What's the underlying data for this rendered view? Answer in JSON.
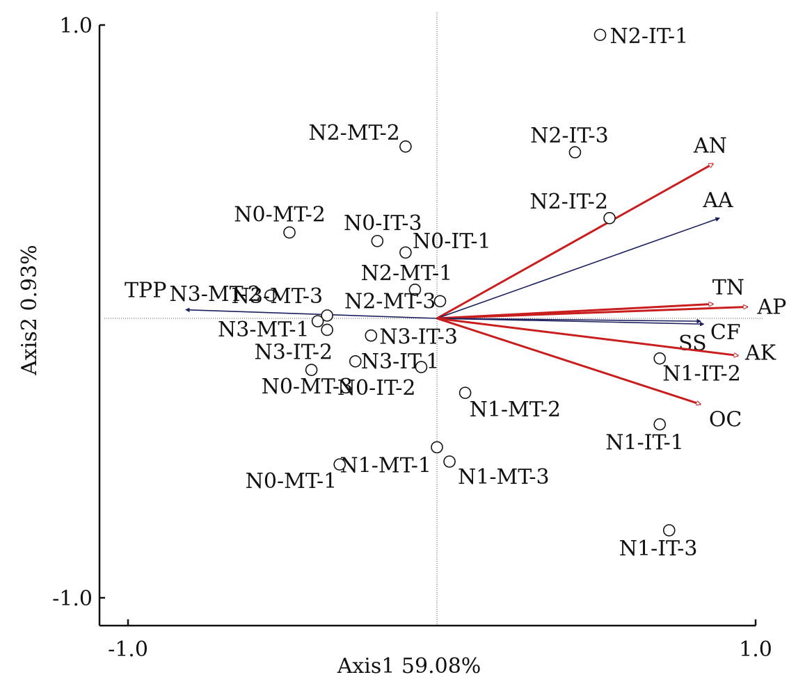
{
  "chart_data": {
    "type": "scatter",
    "xlabel": "Axis1 59.08%",
    "ylabel": "Axis2 0.93%",
    "xlim": [
      -1.0,
      1.0
    ],
    "ylim": [
      -1.0,
      1.0
    ],
    "xticks": [
      "-1.0",
      "1.0"
    ],
    "yticks": [
      "1.0",
      "-1.0"
    ],
    "grid": false,
    "samples": [
      {
        "label": "N2-IT-1",
        "x": 0.52,
        "y": 0.99
      },
      {
        "label": "N2-MT-2",
        "x": -0.1,
        "y": 0.6
      },
      {
        "label": "N2-IT-3",
        "x": 0.44,
        "y": 0.58
      },
      {
        "label": "N2-IT-2",
        "x": 0.55,
        "y": 0.35
      },
      {
        "label": "N0-MT-2",
        "x": -0.47,
        "y": 0.3
      },
      {
        "label": "N0-IT-3",
        "x": -0.19,
        "y": 0.27
      },
      {
        "label": "N0-IT-1",
        "x": -0.1,
        "y": 0.23
      },
      {
        "label": "N2-MT-1",
        "x": -0.07,
        "y": 0.1
      },
      {
        "label": "N2-MT-3",
        "x": 0.01,
        "y": 0.06
      },
      {
        "label": "N3-MT-2",
        "x": -0.53,
        "y": 0.08
      },
      {
        "label": "N3-MT-3",
        "x": -0.35,
        "y": 0.01
      },
      {
        "label": "N3-MT-1",
        "x": -0.38,
        "y": -0.01
      },
      {
        "label": "N3-IT-2",
        "x": -0.35,
        "y": -0.04
      },
      {
        "label": "N3-IT-3",
        "x": -0.21,
        "y": -0.06
      },
      {
        "label": "N3-IT-1",
        "x": -0.26,
        "y": -0.15
      },
      {
        "label": "N0-IT-2",
        "x": -0.05,
        "y": -0.17
      },
      {
        "label": "N0-MT-3",
        "x": -0.4,
        "y": -0.18
      },
      {
        "label": "N1-IT-2",
        "x": 0.71,
        "y": -0.14
      },
      {
        "label": "N1-MT-2",
        "x": 0.09,
        "y": -0.26
      },
      {
        "label": "N1-IT-1",
        "x": 0.71,
        "y": -0.37
      },
      {
        "label": "N1-MT-1",
        "x": 0.0,
        "y": -0.45
      },
      {
        "label": "N1-MT-3",
        "x": 0.04,
        "y": -0.5
      },
      {
        "label": "N0-MT-1",
        "x": -0.31,
        "y": -0.51
      },
      {
        "label": "N1-IT-3",
        "x": 0.74,
        "y": -0.74
      }
    ],
    "vectors": [
      {
        "label": "AN",
        "x": 0.88,
        "y": 0.54,
        "color": "#c81e1e"
      },
      {
        "label": "AA",
        "x": 0.9,
        "y": 0.35,
        "color": "#1a1f5e"
      },
      {
        "label": "TN",
        "x": 0.88,
        "y": 0.05,
        "color": "#c81e1e"
      },
      {
        "label": "AP",
        "x": 0.99,
        "y": 0.04,
        "color": "#c81e1e"
      },
      {
        "label": "CF",
        "x": 0.84,
        "y": -0.01,
        "color": "#1a1f5e"
      },
      {
        "label": "SS",
        "x": 0.85,
        "y": -0.02,
        "color": "#1a1f5e"
      },
      {
        "label": "AK",
        "x": 0.96,
        "y": -0.13,
        "color": "#c81e1e"
      },
      {
        "label": "OC",
        "x": 0.84,
        "y": -0.3,
        "color": "#c81e1e"
      },
      {
        "label": "TPP",
        "x": -0.8,
        "y": 0.03,
        "color": "#1a1f5e"
      }
    ]
  }
}
